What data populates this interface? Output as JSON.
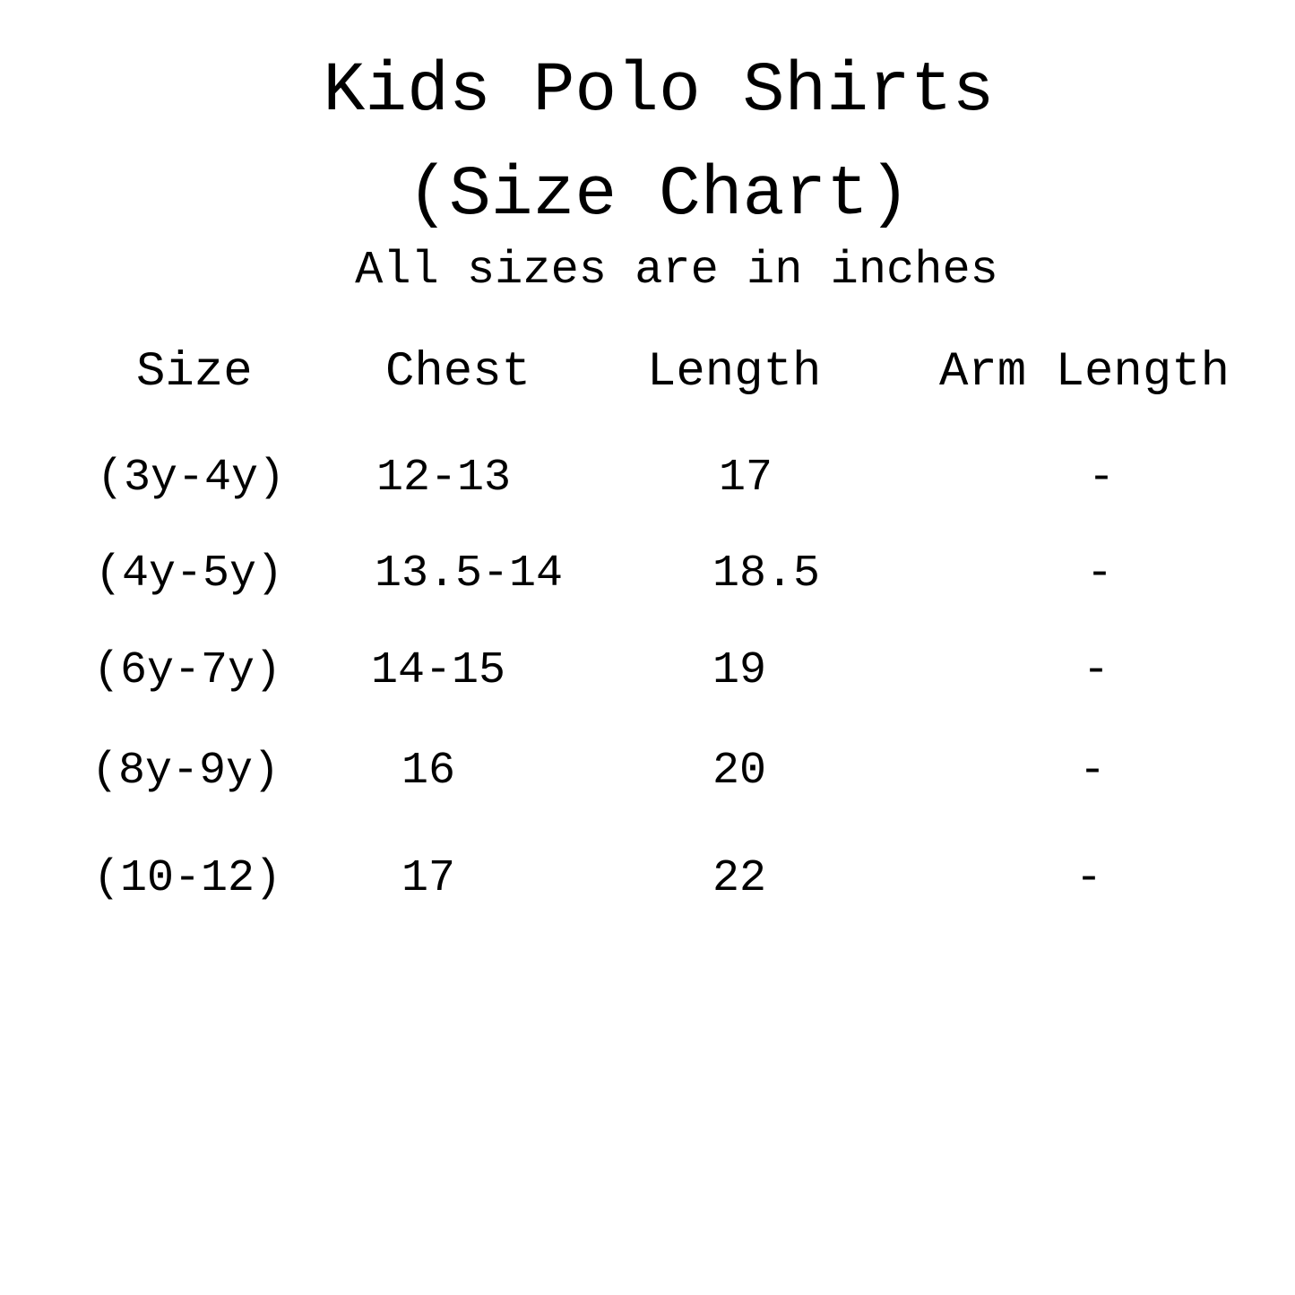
{
  "title_line1": "Kids Polo Shirts",
  "title_line2": "(Size Chart)",
  "subtitle": "All sizes are in inches",
  "table": {
    "headers": [
      "Size",
      "Chest",
      "Length",
      "Arm Length"
    ],
    "rows": [
      [
        "(3y-4y)",
        "12-13",
        "17",
        "-"
      ],
      [
        "(4y-5y)",
        "13.5-14",
        "18.5",
        "-"
      ],
      [
        "(6y-7y)",
        "14-15",
        "19",
        "-"
      ],
      [
        "(8y-9y)",
        "16",
        "20",
        "-"
      ],
      [
        "(10-12)",
        "17",
        "22",
        "-"
      ]
    ]
  }
}
